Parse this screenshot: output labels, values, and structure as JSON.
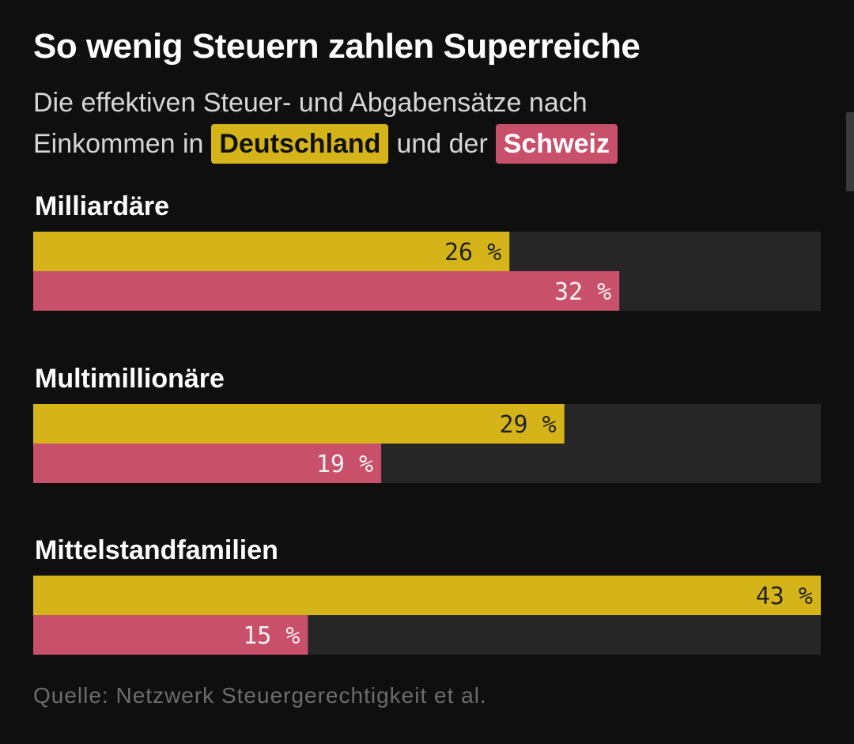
{
  "title": "So wenig Steuern zahlen Superreiche",
  "subtitle": {
    "line1": "Die effektiven Steuer- und Abgabensätze nach",
    "prefix": "Einkommen in",
    "highlight1": "Deutschland",
    "connector": "und der",
    "highlight2": "Schweiz"
  },
  "source": "Quelle: Netzwerk Steuergerechtigkeit et al.",
  "colors": {
    "Deutschland": "#d4b418",
    "Schweiz": "#c8506a",
    "track": "#262626",
    "label_on_de": "#222222",
    "label_on_ch": "#f2f2f2"
  },
  "chart_data": {
    "type": "bar",
    "orientation": "horizontal",
    "title": "So wenig Steuern zahlen Superreiche",
    "categories": [
      "Milliardäre",
      "Multimillionäre",
      "Mittelstandfamilien"
    ],
    "series": [
      {
        "name": "Deutschland",
        "values": [
          26,
          29,
          43
        ]
      },
      {
        "name": "Schweiz",
        "values": [
          32,
          19,
          15
        ]
      }
    ],
    "value_labels": [
      [
        "26 %",
        "29 %",
        "43 %"
      ],
      [
        "32 %",
        "19 %",
        "15 %"
      ]
    ],
    "xlim": [
      0,
      43
    ],
    "grid": false
  }
}
